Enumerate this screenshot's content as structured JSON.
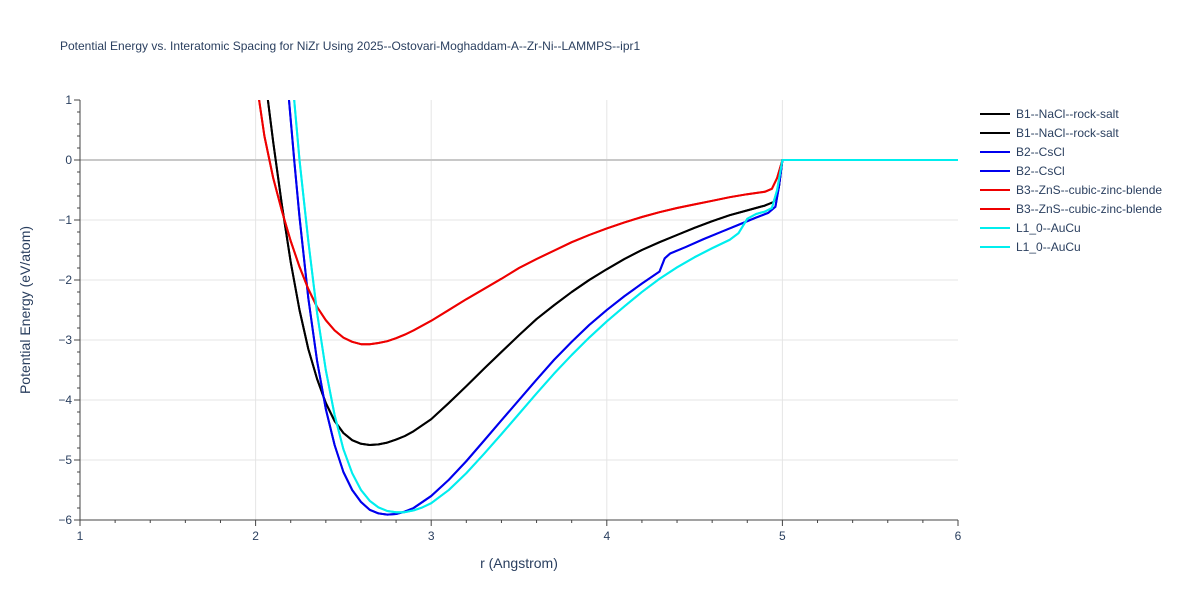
{
  "chart_data": {
    "type": "line",
    "title": "Potential Energy vs. Interatomic Spacing for NiZr Using 2025--Ostovari-Moghaddam-A--Zr-Ni--LAMMPS--ipr1",
    "xlabel": "r (Angstrom)",
    "ylabel": "Potential Energy (eV/atom)",
    "xlim": [
      1,
      6
    ],
    "ylim": [
      -6,
      1
    ],
    "x_ticks": [
      "1",
      "2",
      "3",
      "4",
      "5",
      "6"
    ],
    "y_ticks": [
      "1",
      "0",
      "−1",
      "−2",
      "−3",
      "−4",
      "−5",
      "−6"
    ],
    "grid": true,
    "legend_position": "right",
    "series": [
      {
        "name": "B1--NaCl--rock-salt",
        "color": "#000000",
        "x": [
          2.07,
          2.1,
          2.15,
          2.2,
          2.25,
          2.3,
          2.35,
          2.4,
          2.45,
          2.5,
          2.55,
          2.6,
          2.65,
          2.7,
          2.75,
          2.8,
          2.85,
          2.9,
          3.0,
          3.1,
          3.2,
          3.3,
          3.4,
          3.5,
          3.6,
          3.7,
          3.8,
          3.9,
          4.0,
          4.1,
          4.2,
          4.3,
          4.4,
          4.5,
          4.6,
          4.7,
          4.8,
          4.9,
          4.95,
          4.98,
          5.0,
          6.0
        ],
        "y": [
          1.0,
          0.3,
          -0.75,
          -1.7,
          -2.5,
          -3.15,
          -3.65,
          -4.05,
          -4.35,
          -4.55,
          -4.67,
          -4.73,
          -4.75,
          -4.74,
          -4.71,
          -4.66,
          -4.6,
          -4.52,
          -4.32,
          -4.05,
          -3.77,
          -3.48,
          -3.2,
          -2.92,
          -2.65,
          -2.42,
          -2.2,
          -2.0,
          -1.82,
          -1.65,
          -1.5,
          -1.37,
          -1.25,
          -1.13,
          -1.02,
          -0.92,
          -0.84,
          -0.76,
          -0.7,
          -0.45,
          0.0,
          0.0
        ]
      },
      {
        "name": "B1--NaCl--rock-salt",
        "color": "#000000",
        "x": [
          2.07,
          2.1,
          2.15,
          2.2,
          2.25,
          2.3,
          2.35,
          2.4,
          2.45,
          2.5,
          2.55,
          2.6,
          2.65,
          2.7,
          2.75,
          2.8,
          2.85,
          2.9,
          3.0,
          3.1,
          3.2,
          3.3,
          3.4,
          3.5,
          3.6,
          3.7,
          3.8,
          3.9,
          4.0,
          4.1,
          4.2,
          4.3,
          4.4,
          4.5,
          4.6,
          4.7,
          4.8,
          4.9,
          4.95,
          4.98,
          5.0,
          6.0
        ],
        "y": [
          1.0,
          0.3,
          -0.75,
          -1.7,
          -2.5,
          -3.15,
          -3.65,
          -4.05,
          -4.35,
          -4.55,
          -4.67,
          -4.73,
          -4.75,
          -4.74,
          -4.71,
          -4.66,
          -4.6,
          -4.52,
          -4.32,
          -4.05,
          -3.77,
          -3.48,
          -3.2,
          -2.92,
          -2.65,
          -2.42,
          -2.2,
          -2.0,
          -1.82,
          -1.65,
          -1.5,
          -1.37,
          -1.25,
          -1.13,
          -1.02,
          -0.92,
          -0.84,
          -0.76,
          -0.7,
          -0.45,
          0.0,
          0.0
        ]
      },
      {
        "name": "B2--CsCl",
        "color": "#0000ee",
        "x": [
          2.19,
          2.22,
          2.25,
          2.3,
          2.35,
          2.4,
          2.45,
          2.5,
          2.55,
          2.6,
          2.65,
          2.7,
          2.75,
          2.8,
          2.85,
          2.9,
          3.0,
          3.1,
          3.2,
          3.3,
          3.4,
          3.5,
          3.6,
          3.7,
          3.8,
          3.9,
          4.0,
          4.1,
          4.2,
          4.3,
          4.33,
          4.36,
          4.45,
          4.55,
          4.65,
          4.75,
          4.85,
          4.92,
          4.96,
          4.98,
          5.0,
          6.0
        ],
        "y": [
          1.0,
          0.0,
          -0.95,
          -2.3,
          -3.35,
          -4.15,
          -4.75,
          -5.2,
          -5.5,
          -5.7,
          -5.83,
          -5.89,
          -5.91,
          -5.9,
          -5.86,
          -5.8,
          -5.6,
          -5.33,
          -5.02,
          -4.68,
          -4.34,
          -4.0,
          -3.66,
          -3.33,
          -3.03,
          -2.75,
          -2.5,
          -2.27,
          -2.06,
          -1.86,
          -1.64,
          -1.56,
          -1.45,
          -1.32,
          -1.2,
          -1.08,
          -0.96,
          -0.88,
          -0.78,
          -0.45,
          0.0,
          0.0
        ]
      },
      {
        "name": "B2--CsCl",
        "color": "#0000ee",
        "x": [
          2.19,
          2.22,
          2.25,
          2.3,
          2.35,
          2.4,
          2.45,
          2.5,
          2.55,
          2.6,
          2.65,
          2.7,
          2.75,
          2.8,
          2.85,
          2.9,
          3.0,
          3.1,
          3.2,
          3.3,
          3.4,
          3.5,
          3.6,
          3.7,
          3.8,
          3.9,
          4.0,
          4.1,
          4.2,
          4.3,
          4.33,
          4.36,
          4.45,
          4.55,
          4.65,
          4.75,
          4.85,
          4.92,
          4.96,
          4.98,
          5.0,
          6.0
        ],
        "y": [
          1.0,
          0.0,
          -0.95,
          -2.3,
          -3.35,
          -4.15,
          -4.75,
          -5.2,
          -5.5,
          -5.7,
          -5.83,
          -5.89,
          -5.91,
          -5.9,
          -5.86,
          -5.8,
          -5.6,
          -5.33,
          -5.02,
          -4.68,
          -4.34,
          -4.0,
          -3.66,
          -3.33,
          -3.03,
          -2.75,
          -2.5,
          -2.27,
          -2.06,
          -1.86,
          -1.64,
          -1.56,
          -1.45,
          -1.32,
          -1.2,
          -1.08,
          -0.96,
          -0.88,
          -0.78,
          -0.45,
          0.0,
          0.0
        ]
      },
      {
        "name": "B3--ZnS--cubic-zinc-blende",
        "color": "#ee0000",
        "x": [
          2.02,
          2.05,
          2.1,
          2.15,
          2.2,
          2.25,
          2.3,
          2.35,
          2.4,
          2.45,
          2.5,
          2.55,
          2.6,
          2.65,
          2.7,
          2.75,
          2.8,
          2.85,
          2.9,
          3.0,
          3.1,
          3.2,
          3.3,
          3.4,
          3.5,
          3.6,
          3.7,
          3.8,
          3.9,
          4.0,
          4.1,
          4.2,
          4.3,
          4.4,
          4.5,
          4.6,
          4.7,
          4.8,
          4.9,
          4.94,
          4.97,
          5.0,
          6.0
        ],
        "y": [
          1.0,
          0.4,
          -0.3,
          -0.85,
          -1.35,
          -1.78,
          -2.15,
          -2.45,
          -2.67,
          -2.84,
          -2.96,
          -3.03,
          -3.07,
          -3.07,
          -3.05,
          -3.02,
          -2.97,
          -2.91,
          -2.84,
          -2.68,
          -2.5,
          -2.32,
          -2.15,
          -1.98,
          -1.8,
          -1.65,
          -1.51,
          -1.37,
          -1.25,
          -1.14,
          -1.04,
          -0.95,
          -0.87,
          -0.8,
          -0.74,
          -0.68,
          -0.62,
          -0.57,
          -0.53,
          -0.48,
          -0.3,
          0.0,
          0.0
        ]
      },
      {
        "name": "B3--ZnS--cubic-zinc-blende",
        "color": "#ee0000",
        "x": [
          2.02,
          2.05,
          2.1,
          2.15,
          2.2,
          2.25,
          2.3,
          2.35,
          2.4,
          2.45,
          2.5,
          2.55,
          2.6,
          2.65,
          2.7,
          2.75,
          2.8,
          2.85,
          2.9,
          3.0,
          3.1,
          3.2,
          3.3,
          3.4,
          3.5,
          3.6,
          3.7,
          3.8,
          3.9,
          4.0,
          4.1,
          4.2,
          4.3,
          4.4,
          4.5,
          4.6,
          4.7,
          4.8,
          4.9,
          4.94,
          4.97,
          5.0,
          6.0
        ],
        "y": [
          1.0,
          0.4,
          -0.3,
          -0.85,
          -1.35,
          -1.78,
          -2.15,
          -2.45,
          -2.67,
          -2.84,
          -2.96,
          -3.03,
          -3.07,
          -3.07,
          -3.05,
          -3.02,
          -2.97,
          -2.91,
          -2.84,
          -2.68,
          -2.5,
          -2.32,
          -2.15,
          -1.98,
          -1.8,
          -1.65,
          -1.51,
          -1.37,
          -1.25,
          -1.14,
          -1.04,
          -0.95,
          -0.87,
          -0.8,
          -0.74,
          -0.68,
          -0.62,
          -0.57,
          -0.53,
          -0.48,
          -0.3,
          0.0,
          0.0
        ]
      },
      {
        "name": "L1_0--AuCu",
        "color": "#00eeee",
        "x": [
          2.22,
          2.25,
          2.3,
          2.35,
          2.4,
          2.45,
          2.5,
          2.55,
          2.6,
          2.65,
          2.7,
          2.75,
          2.8,
          2.85,
          2.9,
          2.95,
          3.0,
          3.1,
          3.2,
          3.3,
          3.4,
          3.5,
          3.6,
          3.7,
          3.8,
          3.9,
          4.0,
          4.1,
          4.2,
          4.3,
          4.4,
          4.5,
          4.6,
          4.7,
          4.75,
          4.8,
          4.85,
          4.9,
          4.94,
          4.97,
          5.0,
          6.0
        ],
        "y": [
          1.0,
          0.0,
          -1.35,
          -2.55,
          -3.5,
          -4.25,
          -4.82,
          -5.22,
          -5.5,
          -5.68,
          -5.79,
          -5.85,
          -5.87,
          -5.87,
          -5.84,
          -5.79,
          -5.72,
          -5.5,
          -5.22,
          -4.9,
          -4.57,
          -4.23,
          -3.89,
          -3.56,
          -3.25,
          -2.96,
          -2.69,
          -2.44,
          -2.2,
          -1.98,
          -1.79,
          -1.62,
          -1.47,
          -1.33,
          -1.22,
          -0.98,
          -0.9,
          -0.86,
          -0.8,
          -0.5,
          0.0,
          0.0
        ]
      },
      {
        "name": "L1_0--AuCu",
        "color": "#00eeee",
        "x": [
          2.22,
          2.25,
          2.3,
          2.35,
          2.4,
          2.45,
          2.5,
          2.55,
          2.6,
          2.65,
          2.7,
          2.75,
          2.8,
          2.85,
          2.9,
          2.95,
          3.0,
          3.1,
          3.2,
          3.3,
          3.4,
          3.5,
          3.6,
          3.7,
          3.8,
          3.9,
          4.0,
          4.1,
          4.2,
          4.3,
          4.4,
          4.5,
          4.6,
          4.7,
          4.75,
          4.8,
          4.85,
          4.9,
          4.94,
          4.97,
          5.0,
          6.0
        ],
        "y": [
          1.0,
          0.0,
          -1.35,
          -2.55,
          -3.5,
          -4.25,
          -4.82,
          -5.22,
          -5.5,
          -5.68,
          -5.79,
          -5.85,
          -5.87,
          -5.87,
          -5.84,
          -5.79,
          -5.72,
          -5.5,
          -5.22,
          -4.9,
          -4.57,
          -4.23,
          -3.89,
          -3.56,
          -3.25,
          -2.96,
          -2.69,
          -2.44,
          -2.2,
          -1.98,
          -1.79,
          -1.62,
          -1.47,
          -1.33,
          -1.22,
          -0.98,
          -0.9,
          -0.86,
          -0.8,
          -0.5,
          0.0,
          0.0
        ]
      }
    ]
  }
}
